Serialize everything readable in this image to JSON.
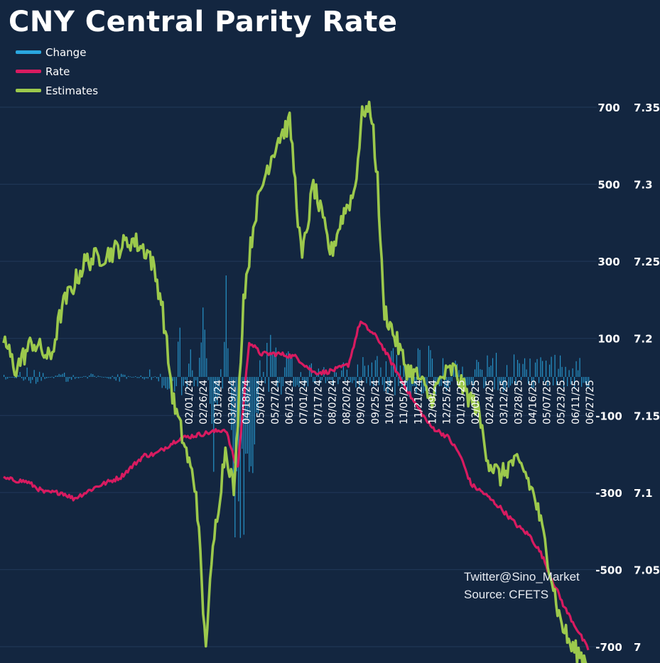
{
  "colors": {
    "background": "#132640",
    "grid": "#22395a",
    "change": "#2aa7e0",
    "rate": "#d81b60",
    "estimates": "#9cc94c",
    "text": "#ffffff"
  },
  "chart_data": {
    "type": "line",
    "title": "CNY Central Parity Rate",
    "legend_position": "top-left",
    "grid": true,
    "y_left": {
      "label": "",
      "lim": [
        -700,
        700
      ],
      "ticks": [
        700,
        500,
        300,
        100,
        -100,
        -300,
        -500,
        -700
      ]
    },
    "y_right": {
      "label": "",
      "lim": [
        7.0,
        7.35
      ],
      "ticks": [
        "7.35",
        "7.3",
        "7.25",
        "7.2",
        "7.15",
        "7.1",
        "7.05",
        "7"
      ]
    },
    "x_ticks": [
      "02/01/24",
      "02/26/24",
      "03/13/24",
      "03/29/24",
      "04/18/24",
      "05/09/24",
      "05/27/24",
      "06/13/24",
      "07/01/24",
      "07/17/24",
      "08/02/24",
      "08/20/24",
      "09/05/24",
      "09/25/24",
      "10/18/24",
      "11/05/24",
      "11/21/24",
      "12/09/24",
      "12/25/24",
      "01/13/25",
      "02/06/25",
      "02/24/25",
      "03/12/25",
      "03/28/25",
      "04/16/25",
      "05/07/25",
      "05/23/25",
      "06/11/25",
      "06/27/25"
    ],
    "series": [
      {
        "name": "Change",
        "axis": "left",
        "kind": "bar",
        "note": "daily change in pips, approx",
        "anchors": [
          [
            0,
            -10
          ],
          [
            0.05,
            30
          ],
          [
            0.1,
            -20
          ],
          [
            0.15,
            10
          ],
          [
            0.2,
            -15
          ],
          [
            0.25,
            20
          ],
          [
            0.28,
            -60
          ],
          [
            0.3,
            150
          ],
          [
            0.32,
            -120
          ],
          [
            0.34,
            200
          ],
          [
            0.36,
            -250
          ],
          [
            0.38,
            260
          ],
          [
            0.4,
            -640
          ],
          [
            0.42,
            -320
          ],
          [
            0.45,
            100
          ],
          [
            0.5,
            40
          ],
          [
            0.55,
            30
          ],
          [
            0.6,
            40
          ],
          [
            0.65,
            60
          ],
          [
            0.7,
            80
          ],
          [
            0.75,
            60
          ],
          [
            0.8,
            40
          ],
          [
            0.85,
            60
          ],
          [
            0.9,
            40
          ],
          [
            0.95,
            50
          ],
          [
            1.0,
            40
          ]
        ]
      },
      {
        "name": "Rate",
        "axis": "right",
        "kind": "line",
        "anchors": [
          [
            0,
            7.109
          ],
          [
            0.04,
            7.107
          ],
          [
            0.07,
            7.1
          ],
          [
            0.1,
            7.1
          ],
          [
            0.12,
            7.096
          ],
          [
            0.16,
            7.104
          ],
          [
            0.2,
            7.11
          ],
          [
            0.24,
            7.124
          ],
          [
            0.26,
            7.125
          ],
          [
            0.3,
            7.135
          ],
          [
            0.34,
            7.138
          ],
          [
            0.38,
            7.141
          ],
          [
            0.4,
            7.114
          ],
          [
            0.42,
            7.198
          ],
          [
            0.44,
            7.19
          ],
          [
            0.47,
            7.19
          ],
          [
            0.5,
            7.188
          ],
          [
            0.53,
            7.178
          ],
          [
            0.55,
            7.178
          ],
          [
            0.57,
            7.18
          ],
          [
            0.59,
            7.183
          ],
          [
            0.61,
            7.211
          ],
          [
            0.64,
            7.2
          ],
          [
            0.67,
            7.18
          ],
          [
            0.7,
            7.16
          ],
          [
            0.73,
            7.143
          ],
          [
            0.76,
            7.136
          ],
          [
            0.78,
            7.125
          ],
          [
            0.8,
            7.105
          ],
          [
            0.82,
            7.1
          ],
          [
            0.85,
            7.09
          ],
          [
            0.88,
            7.078
          ],
          [
            0.9,
            7.072
          ],
          [
            0.92,
            7.06
          ],
          [
            0.94,
            7.042
          ],
          [
            0.96,
            7.025
          ],
          [
            0.98,
            7.012
          ],
          [
            1.0,
            6.998
          ]
        ]
      },
      {
        "name": "Estimates",
        "axis": "right",
        "kind": "line",
        "anchors": [
          [
            0,
            7.2
          ],
          [
            0.02,
            7.18
          ],
          [
            0.05,
            7.198
          ],
          [
            0.08,
            7.186
          ],
          [
            0.1,
            7.22
          ],
          [
            0.14,
            7.25
          ],
          [
            0.18,
            7.255
          ],
          [
            0.22,
            7.264
          ],
          [
            0.25,
            7.255
          ],
          [
            0.27,
            7.225
          ],
          [
            0.29,
            7.16
          ],
          [
            0.31,
            7.13
          ],
          [
            0.33,
            7.1
          ],
          [
            0.345,
            7.0
          ],
          [
            0.36,
            7.07
          ],
          [
            0.38,
            7.13
          ],
          [
            0.395,
            7.1
          ],
          [
            0.41,
            7.225
          ],
          [
            0.43,
            7.28
          ],
          [
            0.45,
            7.31
          ],
          [
            0.47,
            7.33
          ],
          [
            0.49,
            7.34
          ],
          [
            0.51,
            7.25
          ],
          [
            0.53,
            7.3
          ],
          [
            0.56,
            7.255
          ],
          [
            0.58,
            7.28
          ],
          [
            0.6,
            7.295
          ],
          [
            0.615,
            7.35
          ],
          [
            0.63,
            7.345
          ],
          [
            0.64,
            7.3
          ],
          [
            0.65,
            7.22
          ],
          [
            0.67,
            7.2
          ],
          [
            0.69,
            7.18
          ],
          [
            0.71,
            7.175
          ],
          [
            0.73,
            7.16
          ],
          [
            0.75,
            7.175
          ],
          [
            0.77,
            7.18
          ],
          [
            0.79,
            7.165
          ],
          [
            0.81,
            7.155
          ],
          [
            0.83,
            7.12
          ],
          [
            0.85,
            7.11
          ],
          [
            0.87,
            7.12
          ],
          [
            0.89,
            7.115
          ],
          [
            0.91,
            7.095
          ],
          [
            0.93,
            7.06
          ],
          [
            0.95,
            7.02
          ],
          [
            0.97,
            7.0
          ],
          [
            1.0,
            6.99
          ]
        ]
      }
    ]
  },
  "credit": {
    "line1": "Twitter@Sino_Market",
    "line2": "Source: CFETS"
  }
}
